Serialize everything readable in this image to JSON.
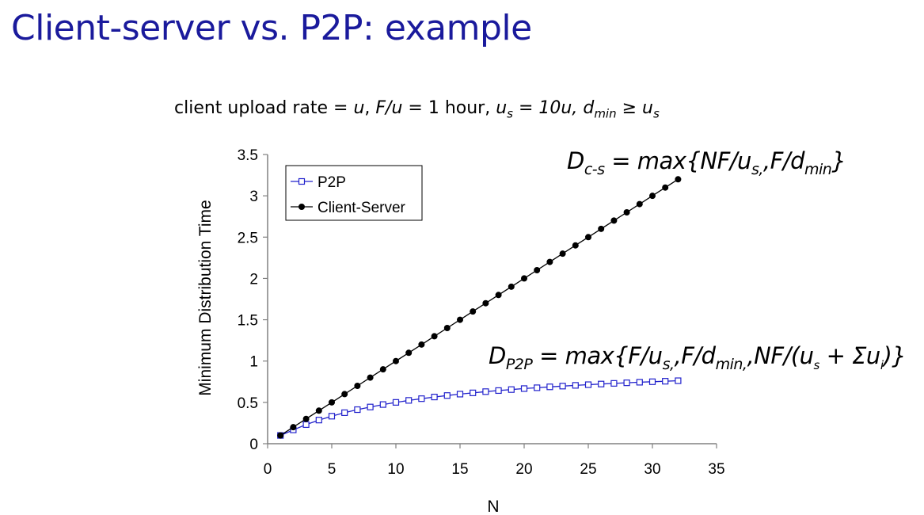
{
  "slide": {
    "title": "Client-server vs. P2P: example"
  },
  "params": {
    "text1": "client upload rate = ",
    "u": "u",
    "text2": ",  ",
    "fu": "F/u",
    "text3": " = 1 hour,  ",
    "us": "u",
    "us_sub": "s",
    "us_val": " = 10u,  ",
    "d": "d",
    "d_sub": "min",
    "ge": " ≥ u",
    "ge_sub": "s"
  },
  "formulas": {
    "cs": {
      "D": "D",
      "D_sub": "c-s",
      "body1": " = max{NF/u",
      "body1_sub": "s,",
      "body2": ",F/d",
      "body2_sub": "min",
      "close": "}"
    },
    "p2p": {
      "D": "D",
      "D_sub": "P2P",
      "body1": " = max{F/u",
      "body1_sub": "s,",
      "body2": ",F/d",
      "body2_sub": "min,",
      "body3": ",NF/(u",
      "body3_sub": "s",
      "body4": " + Σu",
      "body4_sub": "i",
      "close": ")}"
    }
  },
  "chart_data": {
    "type": "line",
    "xlabel": "N",
    "ylabel": "Minimum Distribution Time",
    "xlim": [
      0,
      35
    ],
    "ylim": [
      0,
      3.5
    ],
    "xticks": [
      0,
      5,
      10,
      15,
      20,
      25,
      30,
      35
    ],
    "yticks": [
      0,
      0.5,
      1,
      1.5,
      2,
      2.5,
      3,
      3.5
    ],
    "ytick_labels": [
      "0",
      "0.5",
      "1",
      "1.5",
      "2",
      "2.5",
      "3",
      "3.5"
    ],
    "grid": false,
    "legend_position": "top-left",
    "x": [
      1,
      2,
      3,
      4,
      5,
      6,
      7,
      8,
      9,
      10,
      11,
      12,
      13,
      14,
      15,
      16,
      17,
      18,
      19,
      20,
      21,
      22,
      23,
      24,
      25,
      26,
      27,
      28,
      29,
      30,
      31,
      32
    ],
    "series": [
      {
        "name": "P2P",
        "marker": "open-square",
        "color": "#2222cc",
        "values": [
          0.1,
          0.167,
          0.231,
          0.286,
          0.333,
          0.375,
          0.412,
          0.444,
          0.474,
          0.5,
          0.524,
          0.545,
          0.565,
          0.583,
          0.6,
          0.615,
          0.63,
          0.643,
          0.655,
          0.667,
          0.677,
          0.688,
          0.697,
          0.706,
          0.714,
          0.722,
          0.73,
          0.737,
          0.744,
          0.75,
          0.756,
          0.762
        ]
      },
      {
        "name": "Client-Server",
        "marker": "filled-circle",
        "color": "#000000",
        "values": [
          0.1,
          0.2,
          0.3,
          0.4,
          0.5,
          0.6,
          0.7,
          0.8,
          0.9,
          1.0,
          1.1,
          1.2,
          1.3,
          1.4,
          1.5,
          1.6,
          1.7,
          1.8,
          1.9,
          2.0,
          2.1,
          2.2,
          2.3,
          2.4,
          2.5,
          2.6,
          2.7,
          2.8,
          2.9,
          3.0,
          3.1,
          3.2
        ]
      }
    ]
  }
}
